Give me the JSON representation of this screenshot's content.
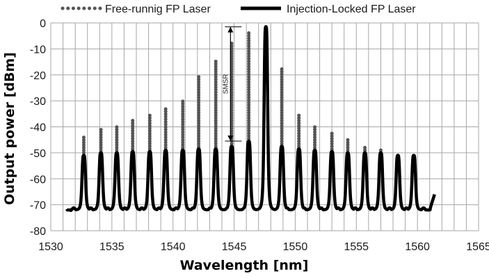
{
  "chart_data": {
    "type": "line",
    "xlabel": "Wavelength [nm]",
    "ylabel": "Output power [dBm]",
    "xlim": [
      1530,
      1565
    ],
    "ylim": [
      -80,
      0
    ],
    "xticks": [
      "1530",
      "1535",
      "1540",
      "1545",
      "1550",
      "1555",
      "1560",
      "1565"
    ],
    "yticks": [
      "0",
      "-10",
      "-20",
      "-30",
      "-40",
      "-50",
      "-60",
      "-70",
      "-80"
    ],
    "grid": true,
    "legend_position": "top",
    "baseline_dbm": -72,
    "range": [
      1531.3,
      1561.4
    ],
    "series": [
      {
        "name": "Free-runnig FP Laser",
        "style": "dotted",
        "color": "#555555",
        "peaks": [
          {
            "x": 1532.7,
            "y": -44
          },
          {
            "x": 1534.1,
            "y": -41
          },
          {
            "x": 1535.4,
            "y": -40
          },
          {
            "x": 1536.7,
            "y": -37.5
          },
          {
            "x": 1538.1,
            "y": -35.5
          },
          {
            "x": 1539.4,
            "y": -32.5
          },
          {
            "x": 1540.8,
            "y": -29.5
          },
          {
            "x": 1542.1,
            "y": -20
          },
          {
            "x": 1543.5,
            "y": -14
          },
          {
            "x": 1544.8,
            "y": -7.5
          },
          {
            "x": 1546.2,
            "y": -3
          },
          {
            "x": 1547.6,
            "y": -1
          },
          {
            "x": 1548.9,
            "y": -17
          },
          {
            "x": 1550.3,
            "y": -35.5
          },
          {
            "x": 1551.6,
            "y": -39.5
          },
          {
            "x": 1553.0,
            "y": -42.5
          },
          {
            "x": 1554.3,
            "y": -45
          },
          {
            "x": 1555.7,
            "y": -47.5
          },
          {
            "x": 1557.0,
            "y": -48.5
          },
          {
            "x": 1558.4,
            "y": -51
          },
          {
            "x": 1559.7,
            "y": -52
          }
        ]
      },
      {
        "name": "Injection-Locked FP Laser",
        "style": "solid",
        "color": "#000000",
        "peaks": [
          {
            "x": 1532.7,
            "y": -51
          },
          {
            "x": 1534.1,
            "y": -50
          },
          {
            "x": 1535.4,
            "y": -50
          },
          {
            "x": 1536.7,
            "y": -49.5
          },
          {
            "x": 1538.1,
            "y": -49.5
          },
          {
            "x": 1539.4,
            "y": -49
          },
          {
            "x": 1540.8,
            "y": -49
          },
          {
            "x": 1542.1,
            "y": -48.5
          },
          {
            "x": 1543.5,
            "y": -48.5
          },
          {
            "x": 1544.8,
            "y": -47.5
          },
          {
            "x": 1546.2,
            "y": -45.5
          },
          {
            "x": 1547.6,
            "y": -1.5
          },
          {
            "x": 1548.9,
            "y": -47.5
          },
          {
            "x": 1550.3,
            "y": -48.5
          },
          {
            "x": 1551.6,
            "y": -49
          },
          {
            "x": 1553.0,
            "y": -49.5
          },
          {
            "x": 1554.3,
            "y": -50
          },
          {
            "x": 1555.7,
            "y": -50
          },
          {
            "x": 1557.0,
            "y": -50
          },
          {
            "x": 1558.4,
            "y": -51
          },
          {
            "x": 1559.7,
            "y": -51
          }
        ]
      }
    ],
    "annotations": [
      {
        "text": "SMSR",
        "x": 1545.5,
        "y_from": -1.5,
        "y_to": -45.5
      }
    ]
  }
}
